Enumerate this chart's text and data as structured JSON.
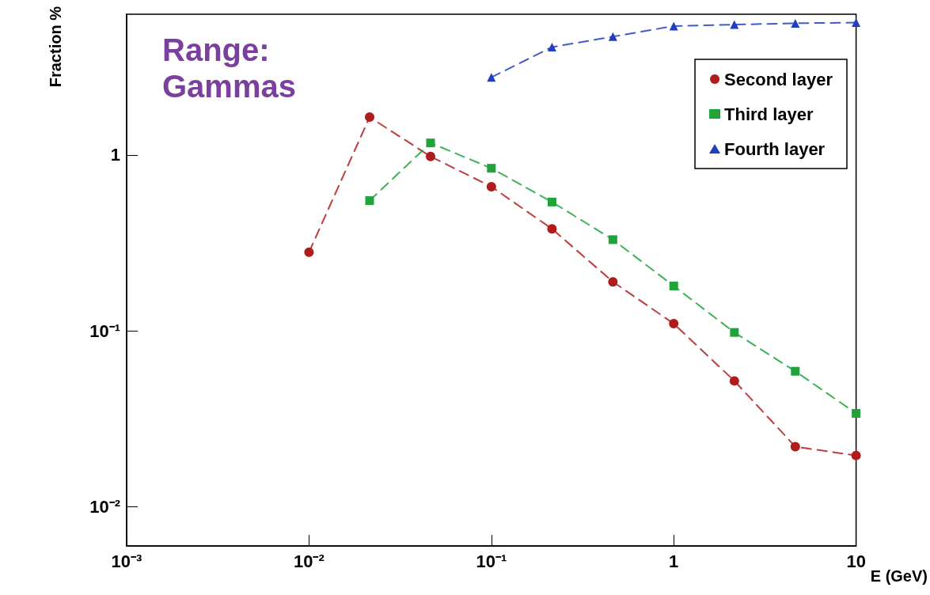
{
  "chart_data": {
    "type": "line",
    "xlabel": "E (GeV)",
    "ylabel": "Fraction %",
    "annotations": [
      "Range: Gammas"
    ],
    "log": "xy",
    "grid": false,
    "legend": "top right",
    "line_style": "dashed",
    "xlim": [
      0.001,
      10
    ],
    "ylim": [
      0.006,
      6.3
    ],
    "xticks": [
      {
        "value": 0.001,
        "label": "10⁻³"
      },
      {
        "value": 0.01,
        "label": "10⁻²"
      },
      {
        "value": 0.1,
        "label": "10⁻¹"
      },
      1,
      10
    ],
    "yticks": [
      {
        "value": 0.01,
        "label": "10⁻²"
      },
      {
        "value": 0.1,
        "label": "10⁻¹"
      },
      1
    ],
    "series": [
      {
        "name": "Second layer",
        "color": "#b01c1c",
        "marker": "circle",
        "x": [
          0.01,
          0.0215,
          0.0464,
          0.1,
          0.215,
          0.464,
          1,
          2.15,
          4.64,
          10
        ],
        "values": [
          0.28,
          1.64,
          0.98,
          0.66,
          0.38,
          0.19,
          0.11,
          0.052,
          0.022,
          0.0196
        ]
      },
      {
        "name": "Third layer",
        "color": "#1fa33a",
        "marker": "square",
        "x": [
          0.0215,
          0.0464,
          0.1,
          0.215,
          0.464,
          1,
          2.15,
          4.64,
          10
        ],
        "values": [
          0.55,
          1.17,
          0.84,
          0.54,
          0.33,
          0.18,
          0.098,
          0.059,
          0.034
        ]
      },
      {
        "name": "Fourth layer",
        "color": "#1f3fbf",
        "marker": "triangle",
        "x": [
          0.1,
          0.215,
          0.464,
          1,
          2.15,
          4.64,
          10
        ],
        "values": [
          2.76,
          4.1,
          4.7,
          5.4,
          5.5,
          5.6,
          5.65
        ]
      }
    ]
  }
}
